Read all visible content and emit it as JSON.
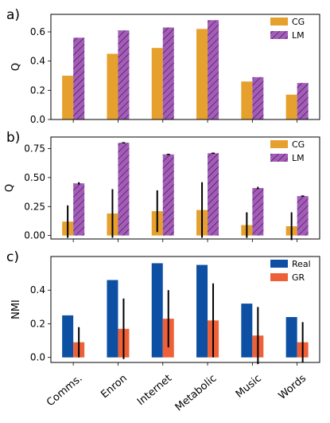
{
  "figure": {
    "categories": [
      "Comms.",
      "Enron",
      "Internet",
      "Metabolic",
      "Music",
      "Words"
    ],
    "colors": {
      "CG": "#E5A02E",
      "LM": "#A35DB8",
      "Real": "#0D4FA3",
      "GR": "#EE6138"
    }
  },
  "chart_data": [
    {
      "type": "bar",
      "panel_label": "a)",
      "ylabel": "Q",
      "ylim": [
        0,
        0.72
      ],
      "yticks": [
        "0.0",
        "0.2",
        "0.4",
        "0.6"
      ],
      "ytick_values": [
        0.0,
        0.2,
        0.4,
        0.6
      ],
      "legend_position": "top-right",
      "categories": [
        "Comms.",
        "Enron",
        "Internet",
        "Metabolic",
        "Music",
        "Words"
      ],
      "series": [
        {
          "name": "CG",
          "color": "#E5A02E",
          "hatch": false,
          "values": [
            0.3,
            0.45,
            0.49,
            0.62,
            0.26,
            0.17
          ]
        },
        {
          "name": "LM",
          "color": "#A35DB8",
          "hatch": true,
          "values": [
            0.56,
            0.61,
            0.63,
            0.68,
            0.29,
            0.25
          ]
        }
      ]
    },
    {
      "type": "bar",
      "panel_label": "b)",
      "ylabel": "Q",
      "ylim": [
        -0.03,
        0.85
      ],
      "yticks": [
        "0.00",
        "0.25",
        "0.50",
        "0.75"
      ],
      "ytick_values": [
        0.0,
        0.25,
        0.5,
        0.75
      ],
      "legend_position": "top-right",
      "categories": [
        "Comms.",
        "Enron",
        "Internet",
        "Metabolic",
        "Music",
        "Words"
      ],
      "series": [
        {
          "name": "CG",
          "color": "#E5A02E",
          "hatch": false,
          "values": [
            0.12,
            0.19,
            0.21,
            0.22,
            0.09,
            0.08
          ],
          "error": [
            0.14,
            0.21,
            0.18,
            0.24,
            0.11,
            0.12
          ]
        },
        {
          "name": "LM",
          "color": "#A35DB8",
          "hatch": true,
          "values": [
            0.45,
            0.8,
            0.7,
            0.71,
            0.41,
            0.34
          ],
          "error": [
            0.01,
            0.0,
            0.0,
            0.0,
            0.01,
            0.0
          ]
        }
      ]
    },
    {
      "type": "bar",
      "panel_label": "c)",
      "ylabel": "NMI",
      "ylim": [
        -0.03,
        0.6
      ],
      "yticks": [
        "0.0",
        "0.2",
        "0.4"
      ],
      "ytick_values": [
        0.0,
        0.2,
        0.4
      ],
      "legend_position": "top-right",
      "categories": [
        "Comms.",
        "Enron",
        "Internet",
        "Metabolic",
        "Music",
        "Words"
      ],
      "series": [
        {
          "name": "Real",
          "color": "#0D4FA3",
          "hatch": false,
          "values": [
            0.25,
            0.46,
            0.56,
            0.55,
            0.32,
            0.24
          ]
        },
        {
          "name": "GR",
          "color": "#EE6138",
          "hatch": false,
          "values": [
            0.09,
            0.17,
            0.23,
            0.22,
            0.13,
            0.09
          ],
          "error": [
            0.09,
            0.18,
            0.17,
            0.22,
            0.17,
            0.12
          ]
        }
      ]
    }
  ]
}
